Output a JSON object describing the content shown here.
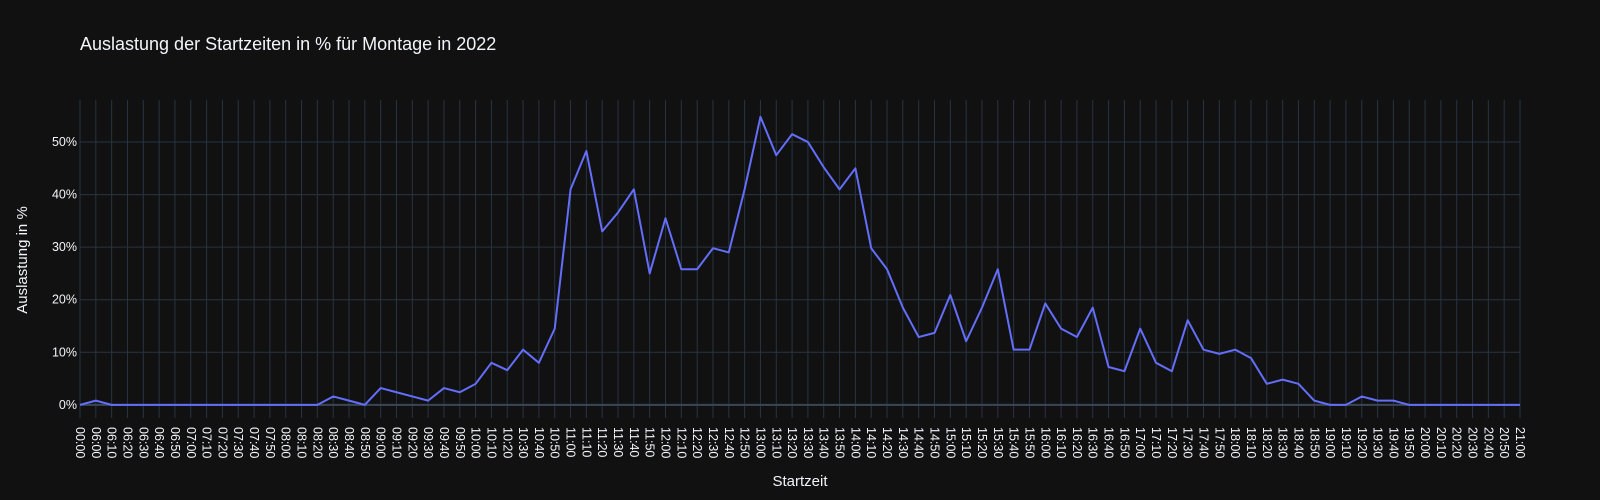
{
  "colors": {
    "background": "#111111",
    "grid": "#283442",
    "zeroline": "#3b4654",
    "line": "#636efa",
    "text": "#f2f5fa"
  },
  "chart_data": {
    "type": "line",
    "title": "Auslastung der Startzeiten in % für Montage in 2022",
    "xlabel": "Startzeit",
    "ylabel": "Auslastung in %",
    "grid": true,
    "legend": "none",
    "ylim": [
      -0.025,
      0.58
    ],
    "y_tick_values": [
      0,
      0.1,
      0.2,
      0.3,
      0.4,
      0.5
    ],
    "y_tick_labels": [
      "0%",
      "10%",
      "20%",
      "30%",
      "40%",
      "50%"
    ],
    "x": [
      "00:00",
      "06:00",
      "06:10",
      "06:20",
      "06:30",
      "06:40",
      "06:50",
      "07:00",
      "07:10",
      "07:20",
      "07:30",
      "07:40",
      "07:50",
      "08:00",
      "08:10",
      "08:20",
      "08:30",
      "08:40",
      "08:50",
      "09:00",
      "09:10",
      "09:20",
      "09:30",
      "09:40",
      "09:50",
      "10:00",
      "10:10",
      "10:20",
      "10:30",
      "10:40",
      "10:50",
      "11:00",
      "11:10",
      "11:20",
      "11:30",
      "11:40",
      "11:50",
      "12:00",
      "12:10",
      "12:20",
      "12:30",
      "12:40",
      "12:50",
      "13:00",
      "13:10",
      "13:20",
      "13:30",
      "13:40",
      "13:50",
      "14:00",
      "14:10",
      "14:20",
      "14:30",
      "14:40",
      "14:50",
      "15:00",
      "15:10",
      "15:20",
      "15:30",
      "15:40",
      "15:50",
      "16:00",
      "16:10",
      "16:20",
      "16:30",
      "16:40",
      "16:50",
      "17:00",
      "17:10",
      "17:20",
      "17:30",
      "17:40",
      "17:50",
      "18:00",
      "18:10",
      "18:20",
      "18:30",
      "18:40",
      "18:50",
      "19:00",
      "19:10",
      "19:20",
      "19:30",
      "19:40",
      "19:50",
      "20:00",
      "20:10",
      "20:20",
      "20:30",
      "20:40",
      "20:50",
      "21:00"
    ],
    "series": [
      {
        "values": [
          0,
          0.008,
          0,
          0,
          0,
          0,
          0,
          0,
          0,
          0,
          0,
          0,
          0,
          0,
          0,
          0,
          0.016,
          0.008,
          0,
          0.032,
          0.024,
          0.016,
          0.008,
          0.032,
          0.024,
          0.04,
          0.08,
          0.066,
          0.105,
          0.08,
          0.145,
          0.41,
          0.483,
          0.33,
          0.366,
          0.41,
          0.25,
          0.355,
          0.258,
          0.258,
          0.298,
          0.29,
          0.41,
          0.548,
          0.475,
          0.515,
          0.5,
          0.452,
          0.41,
          0.45,
          0.298,
          0.258,
          0.185,
          0.129,
          0.137,
          0.209,
          0.121,
          0.185,
          0.258,
          0.105,
          0.105,
          0.193,
          0.145,
          0.129,
          0.185,
          0.072,
          0.064,
          0.145,
          0.08,
          0.064,
          0.161,
          0.105,
          0.097,
          0.105,
          0.089,
          0.04,
          0.048,
          0.04,
          0.008,
          0,
          0,
          0.016,
          0.008,
          0.008,
          0,
          0,
          0,
          0,
          0,
          0,
          0,
          0
        ]
      }
    ]
  }
}
